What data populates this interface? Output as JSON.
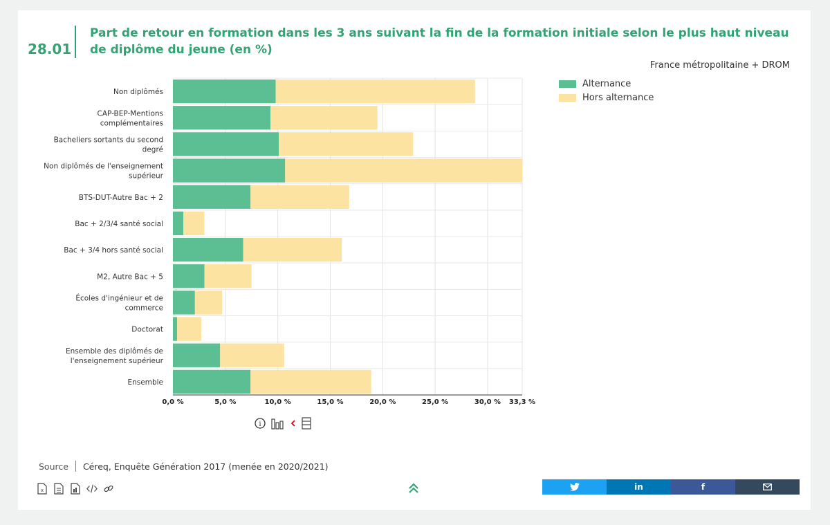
{
  "figure": {
    "number": "28.01",
    "title": "Part de retour en formation dans les 3 ans suivant la fin de la formation initiale selon le plus haut niveau de diplôme du jeune (en %)",
    "region": "France métropolitaine + DROM"
  },
  "colors": {
    "alternance": "#5cbf93",
    "hors_alternance": "#fde3a2",
    "accent": "#34a374"
  },
  "chart_data": {
    "type": "bar",
    "orientation": "horizontal",
    "stacked": true,
    "categories": [
      "Non diplômés",
      "CAP-BEP-Mentions complémentaires",
      "Bacheliers sortants du second degré",
      "Non diplômés de l'enseignement supérieur",
      "BTS-DUT-Autre Bac + 2",
      "Bac + 2/3/4 santé social",
      "Bac + 3/4 hors santé social",
      "M2, Autre Bac + 5",
      "Écoles d'ingénieur et de commerce",
      "Doctorat",
      "Ensemble des diplômés de l'enseignement supérieur",
      "Ensemble"
    ],
    "series": [
      {
        "name": "Alternance",
        "values": [
          9.8,
          9.3,
          10.1,
          10.7,
          7.4,
          1.0,
          6.7,
          3.0,
          2.1,
          0.4,
          4.5,
          7.4
        ]
      },
      {
        "name": "Hors alternance",
        "values": [
          19.0,
          10.2,
          12.8,
          22.6,
          9.4,
          2.0,
          9.4,
          4.5,
          2.6,
          2.3,
          6.1,
          11.5
        ]
      }
    ],
    "xlim": [
      0,
      33.3
    ],
    "xticks": [
      "0,0 %",
      "5,0 %",
      "10,0 %",
      "15,0 %",
      "20,0 %",
      "25,0 %",
      "30,0 %",
      "33,3 %"
    ],
    "xtick_values": [
      0,
      5,
      10,
      15,
      20,
      25,
      30,
      33.3
    ],
    "grid": true,
    "legend": "top-right"
  },
  "legend": {
    "alternance": "Alternance",
    "hors_alternance": "Hors alternance"
  },
  "source": {
    "label": "Source",
    "text": "Céreq, Enquête Génération 2017 (menée en 2020/2021)"
  },
  "icons": {
    "tools": [
      "info-icon",
      "bar-chart-icon",
      "table-icon"
    ],
    "export": [
      "xls-file-icon",
      "csv-file-icon",
      "image-file-icon",
      "embed-code-icon",
      "link-icon"
    ],
    "share": [
      "twitter-icon",
      "linkedin-icon",
      "facebook-icon",
      "email-icon"
    ]
  },
  "share": {
    "twitter": {
      "glyph": "🐦",
      "color": "#1da1f2"
    },
    "linkedin": {
      "glyph": "in",
      "color": "#0077b5"
    },
    "facebook": {
      "glyph": "f",
      "color": "#3b5998"
    },
    "email": {
      "glyph": "✉",
      "color": "#34495e"
    }
  }
}
